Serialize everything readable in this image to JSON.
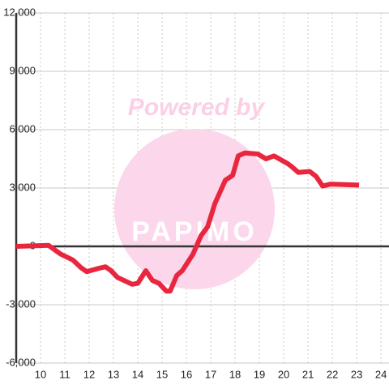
{
  "chart_data": {
    "type": "line",
    "watermark": [
      "Powered by",
      "PAPIMO"
    ],
    "x": [
      9,
      10.33,
      10.83,
      11.33,
      11.67,
      11.9,
      12.33,
      12.67,
      12.9,
      13.17,
      13.77,
      14,
      14.33,
      14.6,
      14.87,
      15.17,
      15.33,
      15.6,
      15.83,
      16.27,
      16.6,
      16.87,
      17.17,
      17.6,
      17.9,
      18.13,
      18.4,
      18.93,
      19.27,
      19.6,
      20.17,
      20.33,
      20.6,
      21.07,
      21.33,
      21.6,
      21.93,
      23.1
    ],
    "series": [
      {
        "color": "#e8273e",
        "values": [
          0,
          50,
          -400,
          -700,
          -1100,
          -1300,
          -1150,
          -1050,
          -1250,
          -1600,
          -1950,
          -1900,
          -1250,
          -1750,
          -1900,
          -2300,
          -2300,
          -1500,
          -1250,
          -400,
          550,
          1000,
          2200,
          3400,
          3650,
          4650,
          4800,
          4750,
          4500,
          4650,
          4250,
          4100,
          3800,
          3850,
          3600,
          3100,
          3200,
          3150
        ]
      }
    ],
    "xlim": [
      9,
      24.33
    ],
    "xticks": [
      10,
      11,
      12,
      13,
      14,
      15,
      16,
      17,
      18,
      19,
      20,
      21,
      22,
      23,
      24
    ],
    "ylim": [
      -6000,
      12000
    ],
    "yticks": [
      {
        "value": -6000,
        "label": "-6,000"
      },
      {
        "value": -3000,
        "label": "-3,000"
      },
      0,
      {
        "value": 3000,
        "label": "3,000"
      },
      {
        "value": 6000,
        "label": "6,000"
      },
      {
        "value": 9000,
        "label": "9,000"
      },
      {
        "value": 12000,
        "label": "12,000"
      }
    ],
    "grid": true
  }
}
